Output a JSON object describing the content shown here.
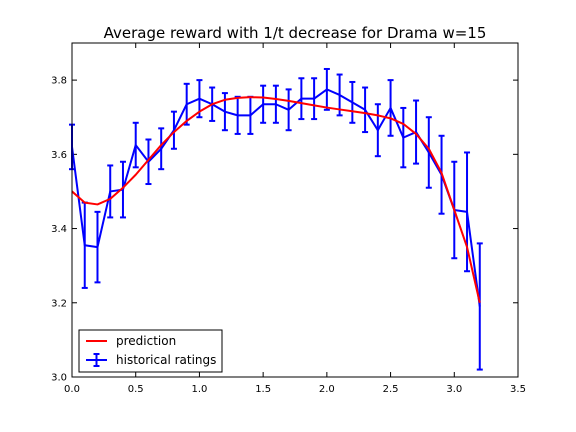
{
  "chart_data": {
    "type": "line",
    "title": "Average reward with 1/t decrease for Drama w=15",
    "xlabel": "",
    "ylabel": "",
    "xlim": [
      0.0,
      3.5
    ],
    "ylim": [
      3.0,
      3.9
    ],
    "xticks": [
      "0.0",
      "0.5",
      "1.0",
      "1.5",
      "2.0",
      "2.5",
      "3.0",
      "3.5"
    ],
    "yticks": [
      "3.0",
      "3.2",
      "3.4",
      "3.6",
      "3.8"
    ],
    "xtick_values": [
      0.0,
      0.5,
      1.0,
      1.5,
      2.0,
      2.5,
      3.0,
      3.5
    ],
    "ytick_values": [
      3.0,
      3.2,
      3.4,
      3.6,
      3.8
    ],
    "grid": false,
    "legend_position": "bottom-left",
    "series": [
      {
        "name": "prediction",
        "color": "#ff0000",
        "x": [
          0.0,
          0.05,
          0.1,
          0.2,
          0.3,
          0.4,
          0.5,
          0.6,
          0.7,
          0.8,
          0.9,
          1.0,
          1.1,
          1.2,
          1.3,
          1.4,
          1.5,
          1.6,
          1.7,
          1.8,
          1.9,
          2.0,
          2.1,
          2.2,
          2.3,
          2.4,
          2.5,
          2.6,
          2.7,
          2.8,
          2.9,
          3.0,
          3.1,
          3.2
        ],
        "y": [
          3.5,
          3.485,
          3.47,
          3.465,
          3.48,
          3.51,
          3.545,
          3.585,
          3.625,
          3.66,
          3.69,
          3.715,
          3.735,
          3.747,
          3.752,
          3.754,
          3.753,
          3.749,
          3.744,
          3.738,
          3.732,
          3.726,
          3.721,
          3.716,
          3.711,
          3.705,
          3.697,
          3.682,
          3.655,
          3.615,
          3.55,
          3.45,
          3.35,
          3.2
        ]
      },
      {
        "name": "historical ratings",
        "color": "#0000ff",
        "x": [
          0.0,
          0.1,
          0.2,
          0.3,
          0.4,
          0.5,
          0.6,
          0.7,
          0.8,
          0.9,
          1.0,
          1.1,
          1.2,
          1.3,
          1.4,
          1.5,
          1.6,
          1.7,
          1.8,
          1.9,
          2.0,
          2.1,
          2.2,
          2.3,
          2.4,
          2.5,
          2.6,
          2.7,
          2.8,
          2.9,
          3.0,
          3.1,
          3.2
        ],
        "y": [
          3.62,
          3.355,
          3.35,
          3.5,
          3.505,
          3.625,
          3.58,
          3.615,
          3.665,
          3.735,
          3.75,
          3.735,
          3.715,
          3.705,
          3.705,
          3.735,
          3.735,
          3.72,
          3.75,
          3.75,
          3.775,
          3.76,
          3.74,
          3.72,
          3.665,
          3.725,
          3.645,
          3.66,
          3.605,
          3.545,
          3.45,
          3.445,
          3.19
        ],
        "yerr": [
          0.06,
          0.115,
          0.095,
          0.07,
          0.075,
          0.06,
          0.06,
          0.055,
          0.05,
          0.055,
          0.05,
          0.045,
          0.05,
          0.05,
          0.05,
          0.05,
          0.05,
          0.055,
          0.055,
          0.055,
          0.055,
          0.055,
          0.055,
          0.06,
          0.07,
          0.075,
          0.08,
          0.085,
          0.095,
          0.105,
          0.13,
          0.16,
          0.17
        ]
      }
    ]
  }
}
